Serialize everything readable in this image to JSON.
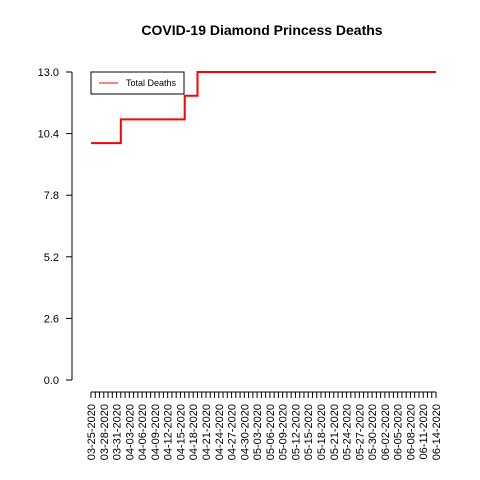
{
  "chart_data": {
    "type": "line",
    "title": "COVID-19 Diamond Princess Deaths",
    "xlabel": "",
    "ylabel": "",
    "ylim": [
      0,
      13
    ],
    "yticks": [
      "0.0",
      "2.6",
      "5.2",
      "7.8",
      "10.4",
      "13.0"
    ],
    "x": [
      "03-25-2020",
      "03-26-2020",
      "03-27-2020",
      "03-28-2020",
      "03-29-2020",
      "03-30-2020",
      "03-31-2020",
      "04-01-2020",
      "04-02-2020",
      "04-03-2020",
      "04-04-2020",
      "04-05-2020",
      "04-06-2020",
      "04-07-2020",
      "04-08-2020",
      "04-09-2020",
      "04-10-2020",
      "04-11-2020",
      "04-12-2020",
      "04-13-2020",
      "04-14-2020",
      "04-15-2020",
      "04-16-2020",
      "04-17-2020",
      "04-18-2020",
      "04-19-2020",
      "04-20-2020",
      "04-21-2020",
      "04-22-2020",
      "04-23-2020",
      "04-24-2020",
      "04-25-2020",
      "04-26-2020",
      "04-27-2020",
      "04-28-2020",
      "04-29-2020",
      "04-30-2020",
      "05-01-2020",
      "05-02-2020",
      "05-03-2020",
      "05-04-2020",
      "05-05-2020",
      "05-06-2020",
      "05-07-2020",
      "05-08-2020",
      "05-09-2020",
      "05-10-2020",
      "05-11-2020",
      "05-12-2020",
      "05-13-2020",
      "05-14-2020",
      "05-15-2020",
      "05-16-2020",
      "05-17-2020",
      "05-18-2020",
      "05-19-2020",
      "05-20-2020",
      "05-21-2020",
      "05-22-2020",
      "05-23-2020",
      "05-24-2020",
      "05-25-2020",
      "05-26-2020",
      "05-27-2020",
      "05-28-2020",
      "05-29-2020",
      "05-30-2020",
      "05-31-2020",
      "06-01-2020",
      "06-02-2020",
      "06-03-2020",
      "06-04-2020",
      "06-05-2020",
      "06-06-2020",
      "06-07-2020",
      "06-08-2020",
      "06-09-2020",
      "06-10-2020",
      "06-11-2020",
      "06-12-2020",
      "06-13-2020",
      "06-14-2020"
    ],
    "x_tick_labels": [
      "03-25-2020",
      "03-28-2020",
      "03-31-2020",
      "04-03-2020",
      "04-06-2020",
      "04-09-2020",
      "04-12-2020",
      "04-15-2020",
      "04-18-2020",
      "04-21-2020",
      "04-24-2020",
      "04-27-2020",
      "04-30-2020",
      "05-03-2020",
      "05-06-2020",
      "05-09-2020",
      "05-12-2020",
      "05-15-2020",
      "05-18-2020",
      "05-21-2020",
      "05-24-2020",
      "05-27-2020",
      "05-30-2020",
      "06-02-2020",
      "06-05-2020",
      "06-08-2020",
      "06-11-2020",
      "06-14-2020"
    ],
    "series": [
      {
        "name": "Total Deaths",
        "color": "#ff0000",
        "values": [
          10,
          10,
          10,
          10,
          10,
          10,
          10,
          11,
          11,
          11,
          11,
          11,
          11,
          11,
          11,
          11,
          11,
          11,
          11,
          11,
          11,
          11,
          12,
          12,
          12,
          13,
          13,
          13,
          13,
          13,
          13,
          13,
          13,
          13,
          13,
          13,
          13,
          13,
          13,
          13,
          13,
          13,
          13,
          13,
          13,
          13,
          13,
          13,
          13,
          13,
          13,
          13,
          13,
          13,
          13,
          13,
          13,
          13,
          13,
          13,
          13,
          13,
          13,
          13,
          13,
          13,
          13,
          13,
          13,
          13,
          13,
          13,
          13,
          13,
          13,
          13,
          13,
          13,
          13,
          13,
          13,
          13
        ]
      }
    ],
    "legend": {
      "position": "top-left"
    },
    "grid": false
  }
}
